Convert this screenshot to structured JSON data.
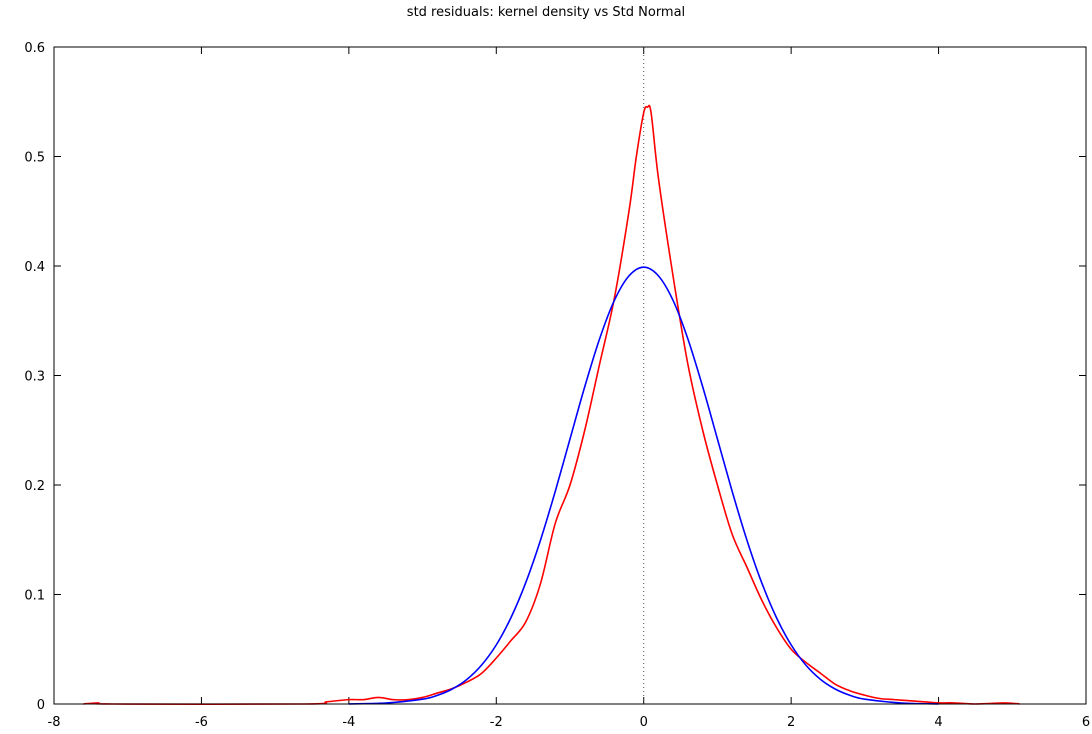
{
  "chart_data": {
    "type": "line",
    "title": "std residuals: kernel density vs Std Normal",
    "xlabel": "",
    "ylabel": "",
    "xlim": [
      -8,
      6
    ],
    "ylim": [
      0,
      0.6
    ],
    "x_ticks": [
      "-8",
      "-6",
      "-4",
      "-2",
      "0",
      "2",
      "4",
      "6"
    ],
    "y_ticks": [
      "0",
      "0.1",
      "0.2",
      "0.3",
      "0.4",
      "0.5",
      "0.6"
    ],
    "grid": false,
    "reference_line": {
      "x": 0,
      "style": "dotted"
    },
    "series": [
      {
        "color": "#ff0000",
        "x": [
          -7.6,
          -7.4,
          -7.2,
          -4.6,
          -4.3,
          -4.0,
          -3.8,
          -3.6,
          -3.4,
          -3.2,
          -3.0,
          -2.8,
          -2.6,
          -2.4,
          -2.2,
          -2.0,
          -1.8,
          -1.6,
          -1.4,
          -1.2,
          -1.0,
          -0.8,
          -0.6,
          -0.4,
          -0.2,
          -0.1,
          0.0,
          0.05,
          0.1,
          0.2,
          0.4,
          0.6,
          0.8,
          1.0,
          1.2,
          1.4,
          1.6,
          1.8,
          2.0,
          2.2,
          2.4,
          2.6,
          2.8,
          3.0,
          3.2,
          3.4,
          3.6,
          3.8,
          4.0,
          4.2,
          4.5,
          4.9,
          5.1
        ],
        "values": [
          0,
          0.001,
          0,
          0,
          0.002,
          0.004,
          0.004,
          0.006,
          0.004,
          0.004,
          0.006,
          0.01,
          0.014,
          0.02,
          0.028,
          0.042,
          0.058,
          0.075,
          0.11,
          0.165,
          0.2,
          0.25,
          0.31,
          0.37,
          0.45,
          0.5,
          0.54,
          0.545,
          0.54,
          0.48,
          0.39,
          0.31,
          0.25,
          0.2,
          0.155,
          0.125,
          0.095,
          0.07,
          0.05,
          0.038,
          0.028,
          0.018,
          0.012,
          0.008,
          0.005,
          0.004,
          0.003,
          0.002,
          0.001,
          0.001,
          0,
          0.001,
          0
        ]
      },
      {
        "color": "#0000ff",
        "x": [
          -4.0,
          -3.5,
          -3.0,
          -2.8,
          -2.6,
          -2.4,
          -2.2,
          -2.0,
          -1.8,
          -1.6,
          -1.4,
          -1.2,
          -1.0,
          -0.8,
          -0.6,
          -0.4,
          -0.2,
          0.0,
          0.2,
          0.4,
          0.6,
          0.8,
          1.0,
          1.2,
          1.4,
          1.6,
          1.8,
          2.0,
          2.2,
          2.4,
          2.6,
          2.8,
          3.0,
          3.5,
          4.0
        ],
        "values": [
          0.0001,
          0.0009,
          0.0044,
          0.0079,
          0.0136,
          0.0224,
          0.0355,
          0.054,
          0.079,
          0.1109,
          0.1497,
          0.1942,
          0.242,
          0.2897,
          0.3332,
          0.3683,
          0.391,
          0.3989,
          0.391,
          0.3683,
          0.3332,
          0.2897,
          0.242,
          0.1942,
          0.1497,
          0.1109,
          0.079,
          0.054,
          0.0355,
          0.0224,
          0.0136,
          0.0079,
          0.0044,
          0.0009,
          0.0001
        ]
      }
    ]
  }
}
